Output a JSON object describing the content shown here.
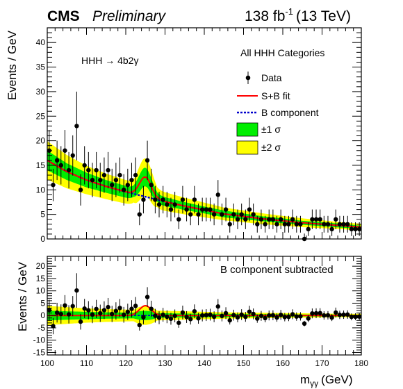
{
  "header": {
    "experiment": "CMS",
    "status": "Preliminary",
    "lumi": "138 fb",
    "lumi_exp": "-1",
    "energy": "(13 TeV)"
  },
  "chart_data": [
    {
      "type": "scatter",
      "panel": "main",
      "process": "HHH → 4b2γ",
      "category_label": "All HHH Categories",
      "ylabel": "Events / GeV",
      "xlim": [
        100,
        180
      ],
      "ylim": [
        0,
        43
      ],
      "yticks": [
        0,
        5,
        10,
        15,
        20,
        25,
        30,
        35,
        40
      ],
      "legend": [
        "Data",
        "S+B fit",
        "B component",
        "±1 σ",
        "±2 σ"
      ],
      "legend_position": "top-right",
      "colors": {
        "sb_fit": "#ff0000",
        "b_component": "#0000cc",
        "band1": "#00ee00",
        "band2": "#ffff00"
      },
      "data": {
        "x": [
          100.5,
          101.5,
          102.5,
          103.5,
          104.5,
          105.5,
          106.5,
          107.5,
          108.5,
          109.5,
          110.5,
          111.5,
          112.5,
          113.5,
          114.5,
          115.5,
          116.5,
          117.5,
          118.5,
          119.5,
          120.5,
          121.5,
          122.5,
          123.5,
          124.5,
          125.5,
          126.5,
          127.5,
          128.5,
          129.5,
          130.5,
          131.5,
          132.5,
          133.5,
          134.5,
          135.5,
          136.5,
          137.5,
          138.5,
          139.5,
          140.5,
          141.5,
          142.5,
          143.5,
          144.5,
          145.5,
          146.5,
          147.5,
          148.5,
          149.5,
          150.5,
          151.5,
          152.5,
          153.5,
          154.5,
          155.5,
          156.5,
          157.5,
          158.5,
          159.5,
          160.5,
          161.5,
          162.5,
          163.5,
          164.5,
          165.5,
          166.5,
          167.5,
          168.5,
          169.5,
          170.5,
          171.5,
          172.5,
          173.5,
          174.5,
          175.5,
          176.5,
          177.5,
          178.5,
          179.5
        ],
        "y": [
          18,
          11,
          16,
          15,
          18,
          14,
          17,
          23,
          10,
          15,
          14,
          12,
          14,
          12,
          13,
          14,
          11,
          12,
          13,
          10,
          11,
          12,
          13,
          5,
          8,
          16,
          11,
          8,
          7,
          8,
          7,
          6,
          7,
          4,
          8,
          6,
          5,
          8,
          5,
          6,
          6,
          6,
          5,
          9,
          5,
          6,
          3,
          5,
          4,
          5,
          4,
          6,
          5,
          3,
          4,
          3,
          4,
          4,
          3,
          4,
          3,
          3,
          4,
          3,
          3,
          0,
          2,
          4,
          4,
          4,
          3,
          3,
          2,
          4,
          3,
          3,
          3,
          2,
          2,
          2
        ],
        "err": [
          4.2,
          3.3,
          4.0,
          3.9,
          4.2,
          3.7,
          4.1,
          7.0,
          3.2,
          3.9,
          3.7,
          3.5,
          3.7,
          3.5,
          3.6,
          3.7,
          3.3,
          3.5,
          3.6,
          3.2,
          3.3,
          3.5,
          3.6,
          2.2,
          2.8,
          4.0,
          3.3,
          2.8,
          2.6,
          2.8,
          2.6,
          2.4,
          2.6,
          2.0,
          2.8,
          2.4,
          2.2,
          2.8,
          2.2,
          2.4,
          2.4,
          2.4,
          2.2,
          3.0,
          2.2,
          2.4,
          1.7,
          2.2,
          2.0,
          2.2,
          2.0,
          2.4,
          2.2,
          1.7,
          2.0,
          1.7,
          2.0,
          2.0,
          1.7,
          2.0,
          1.7,
          1.7,
          2.0,
          1.7,
          1.7,
          1.1,
          1.4,
          2.0,
          2.0,
          2.0,
          1.7,
          1.7,
          1.4,
          2.0,
          1.7,
          1.7,
          1.7,
          1.4,
          1.4,
          1.4
        ]
      },
      "background": {
        "x": [
          100,
          105,
          110,
          115,
          120,
          125,
          130,
          135,
          140,
          145,
          150,
          155,
          160,
          165,
          170,
          175,
          180
        ],
        "y": [
          16.0,
          13.7,
          12.0,
          10.7,
          9.6,
          8.6,
          7.6,
          6.7,
          5.9,
          5.1,
          4.6,
          4.1,
          3.7,
          3.3,
          3.0,
          2.7,
          2.4
        ]
      },
      "signal_peak": {
        "mass": 125,
        "height": 4.0,
        "width": 1.5
      },
      "band_1sigma_halfwidth": [
        2.0,
        1.7,
        1.5,
        1.3,
        1.2,
        1.1,
        0.9,
        0.8,
        0.7,
        0.7,
        0.6,
        0.5,
        0.5,
        0.4,
        0.4,
        0.4,
        0.3
      ],
      "band_2sigma_halfwidth": [
        3.9,
        3.4,
        2.9,
        2.6,
        2.4,
        2.2,
        1.9,
        1.7,
        1.5,
        1.3,
        1.2,
        1.1,
        1.0,
        0.9,
        0.8,
        0.7,
        0.7
      ]
    },
    {
      "type": "scatter",
      "panel": "ratio",
      "annotation": "B component subtracted",
      "ylabel": "Events / GeV",
      "xlabel": "m",
      "xlabel_sub": "γγ",
      "xlabel_unit": "(GeV)",
      "xlim": [
        100,
        180
      ],
      "ylim": [
        -16,
        24
      ],
      "xticks": [
        100,
        110,
        120,
        130,
        140,
        150,
        160,
        170,
        180
      ],
      "yticks": [
        -15,
        -10,
        -5,
        0,
        5,
        10,
        15,
        20
      ]
    }
  ]
}
